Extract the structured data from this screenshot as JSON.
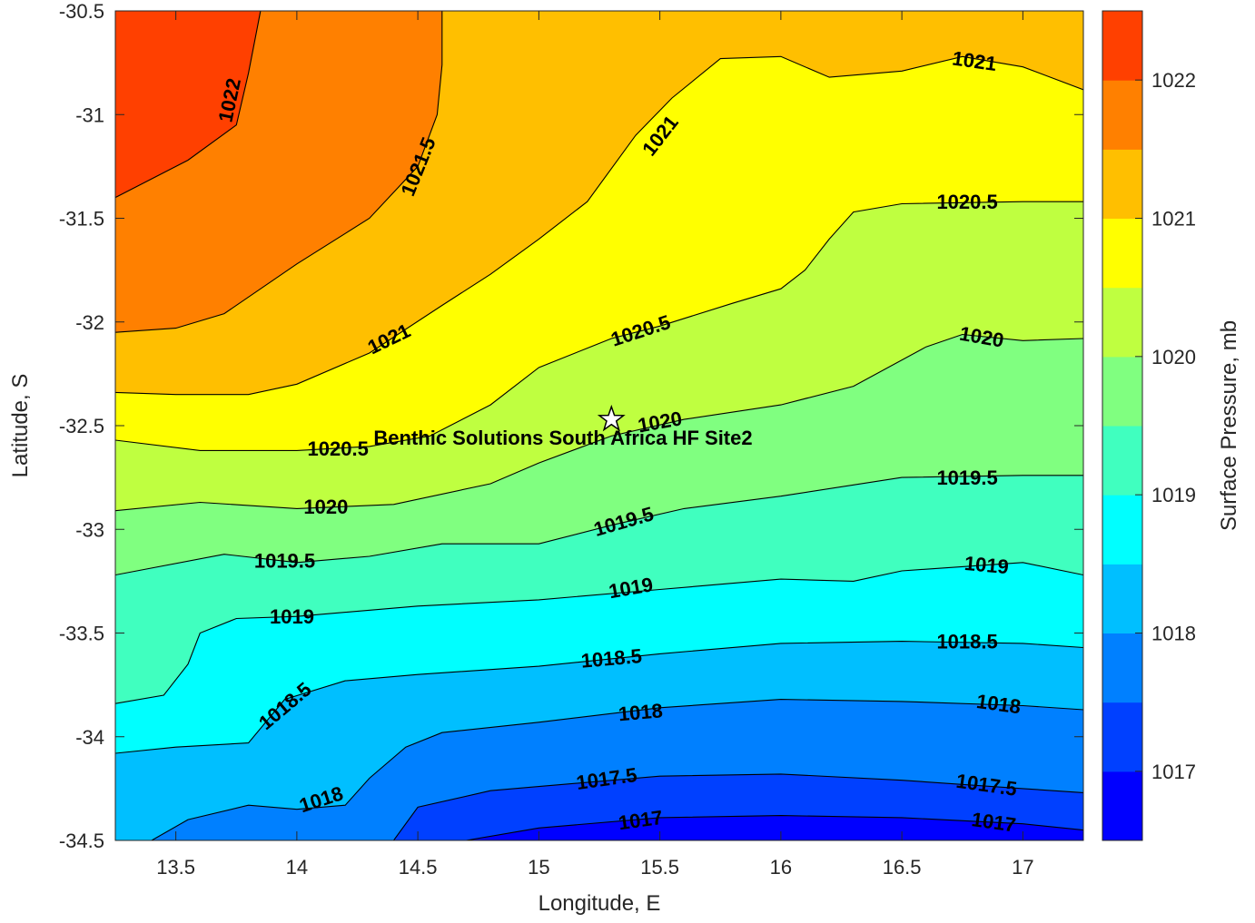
{
  "chart_data": {
    "type": "contour",
    "xlabel": "Longitude, E",
    "ylabel": "Latitude, S",
    "colorbar_label": "Surface Pressure, mb",
    "xlim": [
      13.25,
      17.25
    ],
    "ylim": [
      -34.5,
      -30.5
    ],
    "x_ticks": [
      "13.5",
      "14",
      "14.5",
      "15",
      "15.5",
      "16",
      "16.5",
      "17"
    ],
    "x_tick_values": [
      13.5,
      14,
      14.5,
      15,
      15.5,
      16,
      16.5,
      17
    ],
    "y_ticks": [
      "-30.5",
      "-31",
      "-31.5",
      "-32",
      "-32.5",
      "-33",
      "-33.5",
      "-34",
      "-34.5"
    ],
    "y_tick_values": [
      -30.5,
      -31,
      -31.5,
      -32,
      -32.5,
      -33,
      -33.5,
      -34,
      -34.5
    ],
    "colorbar": {
      "range": [
        1016.5,
        1022.5
      ],
      "tick_labels": [
        "1017",
        "1018",
        "1019",
        "1020",
        "1021",
        "1022"
      ],
      "tick_values": [
        1017,
        1018,
        1019,
        1020,
        1021,
        1022
      ],
      "levels": [
        1016.5,
        1017,
        1017.5,
        1018,
        1018.5,
        1019,
        1019.5,
        1020,
        1020.5,
        1021,
        1021.5,
        1022,
        1022.5
      ],
      "colors": [
        "#0000ff",
        "#0040ff",
        "#0080ff",
        "#00bfff",
        "#00ffff",
        "#40ffbf",
        "#80ff80",
        "#bfff40",
        "#ffff00",
        "#ffbf00",
        "#ff8000",
        "#ff4000"
      ]
    },
    "site": {
      "name": "Benthic Solutions South Africa HF Site2",
      "lon": 15.3,
      "lat": -32.47
    },
    "contours": [
      {
        "level": 1017,
        "label": "1017",
        "points": [
          [
            14.7,
            -34.5
          ],
          [
            15.0,
            -34.44
          ],
          [
            15.5,
            -34.39
          ],
          [
            16.0,
            -34.38
          ],
          [
            16.5,
            -34.39
          ],
          [
            17.0,
            -34.42
          ],
          [
            17.25,
            -34.45
          ]
        ]
      },
      {
        "level": 1017.5,
        "label": "1017.5",
        "points": [
          [
            14.4,
            -34.5
          ],
          [
            14.5,
            -34.34
          ],
          [
            14.8,
            -34.26
          ],
          [
            15.0,
            -34.24
          ],
          [
            15.5,
            -34.19
          ],
          [
            16.0,
            -34.18
          ],
          [
            16.5,
            -34.21
          ],
          [
            17.0,
            -34.25
          ],
          [
            17.25,
            -34.27
          ]
        ]
      },
      {
        "level": 1018,
        "label": "1018",
        "points": [
          [
            13.4,
            -34.5
          ],
          [
            13.55,
            -34.4
          ],
          [
            13.8,
            -34.33
          ],
          [
            14.0,
            -34.35
          ],
          [
            14.2,
            -34.33
          ],
          [
            14.3,
            -34.2
          ],
          [
            14.45,
            -34.05
          ],
          [
            14.6,
            -33.98
          ],
          [
            15.0,
            -33.93
          ],
          [
            15.5,
            -33.86
          ],
          [
            16.0,
            -33.82
          ],
          [
            16.5,
            -33.83
          ],
          [
            17.0,
            -33.85
          ],
          [
            17.25,
            -33.87
          ]
        ]
      },
      {
        "level": 1018.5,
        "label": "1018.5",
        "points": [
          [
            13.25,
            -34.08
          ],
          [
            13.5,
            -34.05
          ],
          [
            13.8,
            -34.03
          ],
          [
            13.95,
            -33.82
          ],
          [
            14.2,
            -33.73
          ],
          [
            14.5,
            -33.7
          ],
          [
            15.0,
            -33.66
          ],
          [
            15.5,
            -33.6
          ],
          [
            16.0,
            -33.55
          ],
          [
            16.5,
            -33.54
          ],
          [
            17.0,
            -33.55
          ],
          [
            17.25,
            -33.57
          ]
        ]
      },
      {
        "level": 1019,
        "label": "1019",
        "points": [
          [
            13.25,
            -33.84
          ],
          [
            13.45,
            -33.8
          ],
          [
            13.55,
            -33.65
          ],
          [
            13.6,
            -33.5
          ],
          [
            13.75,
            -33.43
          ],
          [
            14.0,
            -33.42
          ],
          [
            14.5,
            -33.37
          ],
          [
            15.0,
            -33.34
          ],
          [
            15.5,
            -33.29
          ],
          [
            16.0,
            -33.24
          ],
          [
            16.3,
            -33.25
          ],
          [
            16.5,
            -33.2
          ],
          [
            17.0,
            -33.16
          ],
          [
            17.25,
            -33.22
          ]
        ]
      },
      {
        "level": 1019.5,
        "label": "1019.5",
        "points": [
          [
            13.25,
            -33.22
          ],
          [
            13.7,
            -33.12
          ],
          [
            14.0,
            -33.16
          ],
          [
            14.3,
            -33.13
          ],
          [
            14.6,
            -33.07
          ],
          [
            15.0,
            -33.07
          ],
          [
            15.3,
            -32.98
          ],
          [
            15.6,
            -32.9
          ],
          [
            16.0,
            -32.84
          ],
          [
            16.5,
            -32.75
          ],
          [
            17.0,
            -32.74
          ],
          [
            17.25,
            -32.74
          ]
        ]
      },
      {
        "level": 1020,
        "label": "1020",
        "points": [
          [
            13.25,
            -32.91
          ],
          [
            13.6,
            -32.87
          ],
          [
            14.0,
            -32.9
          ],
          [
            14.4,
            -32.88
          ],
          [
            14.8,
            -32.78
          ],
          [
            15.0,
            -32.68
          ],
          [
            15.3,
            -32.55
          ],
          [
            15.6,
            -32.47
          ],
          [
            16.0,
            -32.4
          ],
          [
            16.3,
            -32.31
          ],
          [
            16.6,
            -32.12
          ],
          [
            16.75,
            -32.06
          ],
          [
            17.0,
            -32.09
          ],
          [
            17.25,
            -32.08
          ]
        ]
      },
      {
        "level": 1020.5,
        "label": "1020.5",
        "points": [
          [
            13.25,
            -32.57
          ],
          [
            13.6,
            -32.62
          ],
          [
            14.0,
            -32.62
          ],
          [
            14.3,
            -32.6
          ],
          [
            14.55,
            -32.55
          ],
          [
            14.8,
            -32.4
          ],
          [
            15.0,
            -32.22
          ],
          [
            15.3,
            -32.08
          ],
          [
            15.5,
            -32.02
          ],
          [
            15.8,
            -31.91
          ],
          [
            16.0,
            -31.84
          ],
          [
            16.1,
            -31.75
          ],
          [
            16.2,
            -31.6
          ],
          [
            16.3,
            -31.47
          ],
          [
            16.5,
            -31.43
          ],
          [
            17.0,
            -31.42
          ],
          [
            17.25,
            -31.42
          ]
        ]
      },
      {
        "level": 1021,
        "label": "1021",
        "points": [
          [
            13.25,
            -32.34
          ],
          [
            13.5,
            -32.35
          ],
          [
            13.8,
            -32.35
          ],
          [
            14.0,
            -32.3
          ],
          [
            14.3,
            -32.15
          ],
          [
            14.6,
            -31.92
          ],
          [
            14.8,
            -31.77
          ],
          [
            15.0,
            -31.6
          ],
          [
            15.2,
            -31.42
          ],
          [
            15.4,
            -31.1
          ],
          [
            15.55,
            -30.92
          ],
          [
            15.75,
            -30.73
          ],
          [
            16.0,
            -30.72
          ],
          [
            16.2,
            -30.82
          ],
          [
            16.5,
            -30.79
          ],
          [
            16.75,
            -30.72
          ],
          [
            17.0,
            -30.77
          ],
          [
            17.25,
            -30.88
          ]
        ]
      },
      {
        "level": 1021.5,
        "label": "1021.5",
        "points": [
          [
            13.25,
            -32.05
          ],
          [
            13.5,
            -32.03
          ],
          [
            13.7,
            -31.96
          ],
          [
            14.0,
            -31.72
          ],
          [
            14.3,
            -31.5
          ],
          [
            14.5,
            -31.25
          ],
          [
            14.58,
            -31.0
          ],
          [
            14.6,
            -30.76
          ],
          [
            14.6,
            -30.5
          ]
        ]
      },
      {
        "level": 1022,
        "label": "1022",
        "points": [
          [
            13.25,
            -31.4
          ],
          [
            13.55,
            -31.22
          ],
          [
            13.75,
            -31.05
          ],
          [
            13.8,
            -30.8
          ],
          [
            13.85,
            -30.5
          ]
        ]
      }
    ],
    "contour_labels": [
      {
        "text": "1022",
        "lon": 13.72,
        "lat": -30.93,
        "angle": -78
      },
      {
        "text": "1021.5",
        "lon": 14.5,
        "lat": -31.25,
        "angle": -68
      },
      {
        "text": "1021",
        "lon": 15.5,
        "lat": -31.1,
        "angle": -52
      },
      {
        "text": "1021",
        "lon": 16.8,
        "lat": -30.74,
        "angle": 8
      },
      {
        "text": "1020.5",
        "lon": 16.77,
        "lat": -31.42,
        "angle": 0
      },
      {
        "text": "1021",
        "lon": 14.38,
        "lat": -32.08,
        "angle": -26
      },
      {
        "text": "1020.5",
        "lon": 15.42,
        "lat": -32.04,
        "angle": -18
      },
      {
        "text": "1020",
        "lon": 16.83,
        "lat": -32.07,
        "angle": 10
      },
      {
        "text": "1020.5",
        "lon": 14.17,
        "lat": -32.61,
        "angle": 0
      },
      {
        "text": "1020",
        "lon": 15.5,
        "lat": -32.48,
        "angle": -10
      },
      {
        "text": "1020",
        "lon": 14.12,
        "lat": -32.89,
        "angle": 0
      },
      {
        "text": "1019.5",
        "lon": 16.77,
        "lat": -32.75,
        "angle": 0
      },
      {
        "text": "1019.5",
        "lon": 15.35,
        "lat": -32.96,
        "angle": -16
      },
      {
        "text": "1019.5",
        "lon": 13.95,
        "lat": -33.15,
        "angle": 0
      },
      {
        "text": "1019",
        "lon": 16.85,
        "lat": -33.17,
        "angle": 5
      },
      {
        "text": "1019",
        "lon": 15.38,
        "lat": -33.28,
        "angle": -10
      },
      {
        "text": "1019",
        "lon": 13.98,
        "lat": -33.42,
        "angle": 0
      },
      {
        "text": "1018.5",
        "lon": 16.77,
        "lat": -33.54,
        "angle": 0
      },
      {
        "text": "1018.5",
        "lon": 15.3,
        "lat": -33.62,
        "angle": -5
      },
      {
        "text": "1018.5",
        "lon": 13.95,
        "lat": -33.85,
        "angle": -40
      },
      {
        "text": "1018",
        "lon": 16.9,
        "lat": -33.84,
        "angle": 8
      },
      {
        "text": "1018",
        "lon": 15.42,
        "lat": -33.88,
        "angle": -5
      },
      {
        "text": "1018",
        "lon": 14.1,
        "lat": -34.3,
        "angle": -18
      },
      {
        "text": "1017.5",
        "lon": 16.85,
        "lat": -34.23,
        "angle": 8
      },
      {
        "text": "1017.5",
        "lon": 15.28,
        "lat": -34.2,
        "angle": -8
      },
      {
        "text": "1017",
        "lon": 16.88,
        "lat": -34.41,
        "angle": 8
      },
      {
        "text": "1017",
        "lon": 15.42,
        "lat": -34.4,
        "angle": -8
      }
    ]
  }
}
